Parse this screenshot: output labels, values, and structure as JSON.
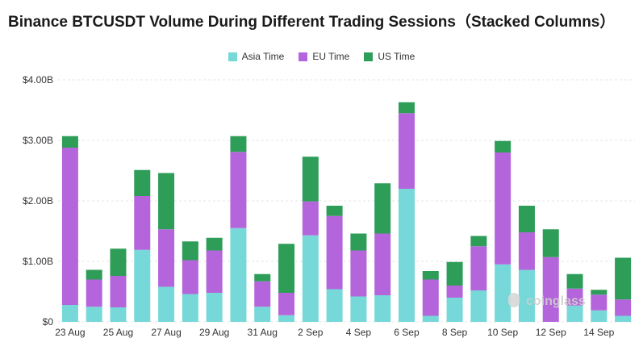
{
  "title": "Binance BTCUSDT Volume During Different Trading Sessions（Stacked Columns）",
  "watermark": "coinglass",
  "chart_data": {
    "type": "bar",
    "stacked": true,
    "legend_position": "top-center",
    "grid": true,
    "ylim": [
      0,
      4.0
    ],
    "y_ticks": [
      "$0",
      "$1.00B",
      "$2.00B",
      "$3.00B",
      "$4.00B"
    ],
    "categories": [
      "23 Aug",
      "24 Aug",
      "25 Aug",
      "26 Aug",
      "27 Aug",
      "28 Aug",
      "29 Aug",
      "30 Aug",
      "31 Aug",
      "1 Sep",
      "2 Sep",
      "3 Sep",
      "4 Sep",
      "5 Sep",
      "6 Sep",
      "7 Sep",
      "8 Sep",
      "9 Sep",
      "10 Sep",
      "11 Sep",
      "12 Sep",
      "13 Sep",
      "14 Sep",
      "15 Sep"
    ],
    "x_tick_labels": [
      "23 Aug",
      "25 Aug",
      "27 Aug",
      "29 Aug",
      "31 Aug",
      "2 Sep",
      "4 Sep",
      "6 Sep",
      "8 Sep",
      "10 Sep",
      "12 Sep",
      "14 Sep"
    ],
    "series": [
      {
        "name": "Asia Time",
        "color": "#76d8d8",
        "values": [
          0.28,
          0.25,
          0.24,
          1.19,
          0.58,
          0.46,
          0.48,
          1.55,
          0.25,
          0.11,
          1.43,
          0.54,
          0.42,
          0.44,
          2.2,
          0.1,
          0.4,
          0.52,
          0.95,
          0.86,
          0.0,
          0.27,
          0.19,
          0.1
        ]
      },
      {
        "name": "EU Time",
        "color": "#b565db",
        "values": [
          2.6,
          0.45,
          0.52,
          0.89,
          0.95,
          0.56,
          0.7,
          1.26,
          0.42,
          0.37,
          0.56,
          1.21,
          0.76,
          1.02,
          1.25,
          0.6,
          0.2,
          0.73,
          1.85,
          0.62,
          1.07,
          0.28,
          0.26,
          0.27
        ]
      },
      {
        "name": "US Time",
        "color": "#2d9d58",
        "values": [
          0.19,
          0.16,
          0.45,
          0.43,
          0.93,
          0.31,
          0.21,
          0.26,
          0.12,
          0.81,
          0.74,
          0.17,
          0.28,
          0.83,
          0.18,
          0.14,
          0.39,
          0.17,
          0.19,
          0.44,
          0.46,
          0.24,
          0.08,
          0.69
        ]
      }
    ]
  }
}
